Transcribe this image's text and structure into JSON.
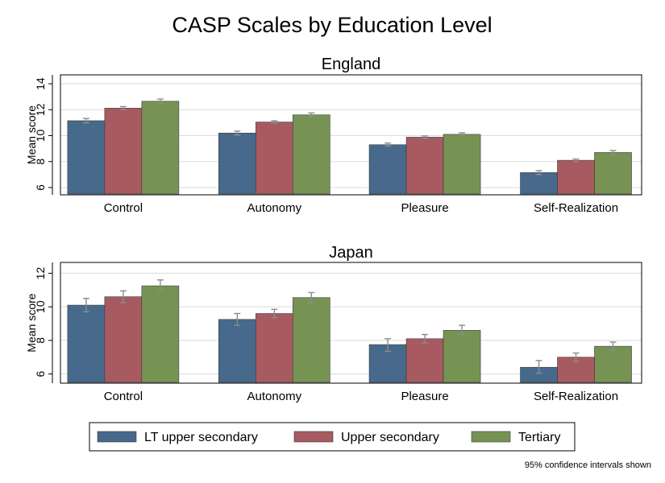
{
  "title": "CASP Scales by Education Level",
  "note": "95% confidence intervals shown",
  "colors": {
    "LT upper secondary": "#46698c",
    "Upper secondary": "#a75a60",
    "Tertiary": "#779354",
    "error_bar": "#8c8c8c",
    "grid": "#d9d9d9"
  },
  "legend": {
    "placement": "bottom",
    "items": [
      "LT upper secondary",
      "Upper secondary",
      "Tertiary"
    ]
  },
  "chart_data": [
    {
      "type": "bar",
      "title": "England",
      "ylabel": "Mean score",
      "ylim": [
        5.5,
        14.5
      ],
      "yticks": [
        6,
        8,
        10,
        12,
        14
      ],
      "grid": true,
      "categories": [
        "Control",
        "Autonomy",
        "Pleasure",
        "Self-Realization"
      ],
      "series": [
        {
          "name": "LT upper secondary",
          "values": [
            11.15,
            10.2,
            9.3,
            7.15
          ],
          "ci_low": [
            10.98,
            10.05,
            9.2,
            7.0
          ],
          "ci_high": [
            11.32,
            10.35,
            9.43,
            7.3
          ]
        },
        {
          "name": "Upper secondary",
          "values": [
            12.12,
            11.05,
            9.88,
            8.1
          ],
          "ci_low": [
            12.02,
            10.97,
            9.8,
            8.0
          ],
          "ci_high": [
            12.24,
            11.15,
            9.98,
            8.2
          ]
        },
        {
          "name": "Tertiary",
          "values": [
            12.65,
            11.6,
            10.1,
            8.7
          ],
          "ci_low": [
            12.5,
            11.45,
            10.0,
            8.55
          ],
          "ci_high": [
            12.82,
            11.75,
            10.22,
            8.85
          ]
        }
      ]
    },
    {
      "type": "bar",
      "title": "Japan",
      "ylabel": "Mean score",
      "ylim": [
        5.5,
        12.5
      ],
      "yticks": [
        6,
        8,
        10,
        12
      ],
      "grid": true,
      "categories": [
        "Control",
        "Autonomy",
        "Pleasure",
        "Self-Realization"
      ],
      "series": [
        {
          "name": "LT upper secondary",
          "values": [
            10.1,
            9.25,
            7.75,
            6.4
          ],
          "ci_low": [
            9.7,
            8.9,
            7.35,
            6.05
          ],
          "ci_high": [
            10.5,
            9.6,
            8.1,
            6.8
          ]
        },
        {
          "name": "Upper secondary",
          "values": [
            10.6,
            9.6,
            8.1,
            7.0
          ],
          "ci_low": [
            10.25,
            9.35,
            7.85,
            6.75
          ],
          "ci_high": [
            10.95,
            9.85,
            8.35,
            7.25
          ]
        },
        {
          "name": "Tertiary",
          "values": [
            11.25,
            10.55,
            8.6,
            7.65
          ],
          "ci_low": [
            10.95,
            10.25,
            8.35,
            7.4
          ],
          "ci_high": [
            11.6,
            10.85,
            8.9,
            7.9
          ]
        }
      ]
    }
  ]
}
